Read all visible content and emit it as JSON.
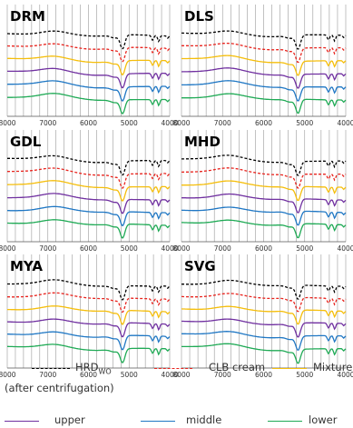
{
  "chart_data": {
    "type": "line",
    "x_ticks": [
      8000,
      7000,
      6000,
      5000,
      4000
    ],
    "xlim": [
      8000,
      4000
    ],
    "grid": "vertical",
    "panels": [
      {
        "title": "DRM",
        "offsets": [
          0,
          1,
          2,
          3,
          4,
          5
        ]
      },
      {
        "title": "DLS",
        "offsets": [
          0,
          1,
          2,
          3,
          4,
          5
        ]
      },
      {
        "title": "GDL",
        "offsets": [
          0,
          1,
          2,
          3,
          4,
          5
        ]
      },
      {
        "title": "MHD",
        "offsets": [
          0,
          1,
          2,
          3,
          4,
          5
        ]
      },
      {
        "title": "MYA",
        "offsets": [
          0,
          1,
          2,
          3,
          4,
          5
        ]
      },
      {
        "title": "SVG",
        "offsets": [
          0,
          1,
          2,
          3,
          4,
          5
        ]
      }
    ],
    "series": [
      {
        "name": "HRD",
        "name_sub": "WO",
        "color": "#000000",
        "dash": "dashed"
      },
      {
        "name": "CLB cream",
        "color": "#e8241e",
        "dash": "dashed"
      },
      {
        "name": "Mixture",
        "color": "#f5be0b",
        "dash": "solid"
      },
      {
        "name": "upper",
        "color": "#7030a0",
        "dash": "solid"
      },
      {
        "name": "middle",
        "color": "#1f77c4",
        "dash": "solid"
      },
      {
        "name": "lower",
        "color": "#1faa55",
        "dash": "solid"
      }
    ]
  },
  "legend": {
    "hrd_main": "HRD",
    "hrd_sub": "WO",
    "clb": "CLB cream",
    "mixture": "Mixture",
    "note": "(after centrifugation)",
    "upper": "upper",
    "middle": "middle",
    "lower": "lower"
  }
}
